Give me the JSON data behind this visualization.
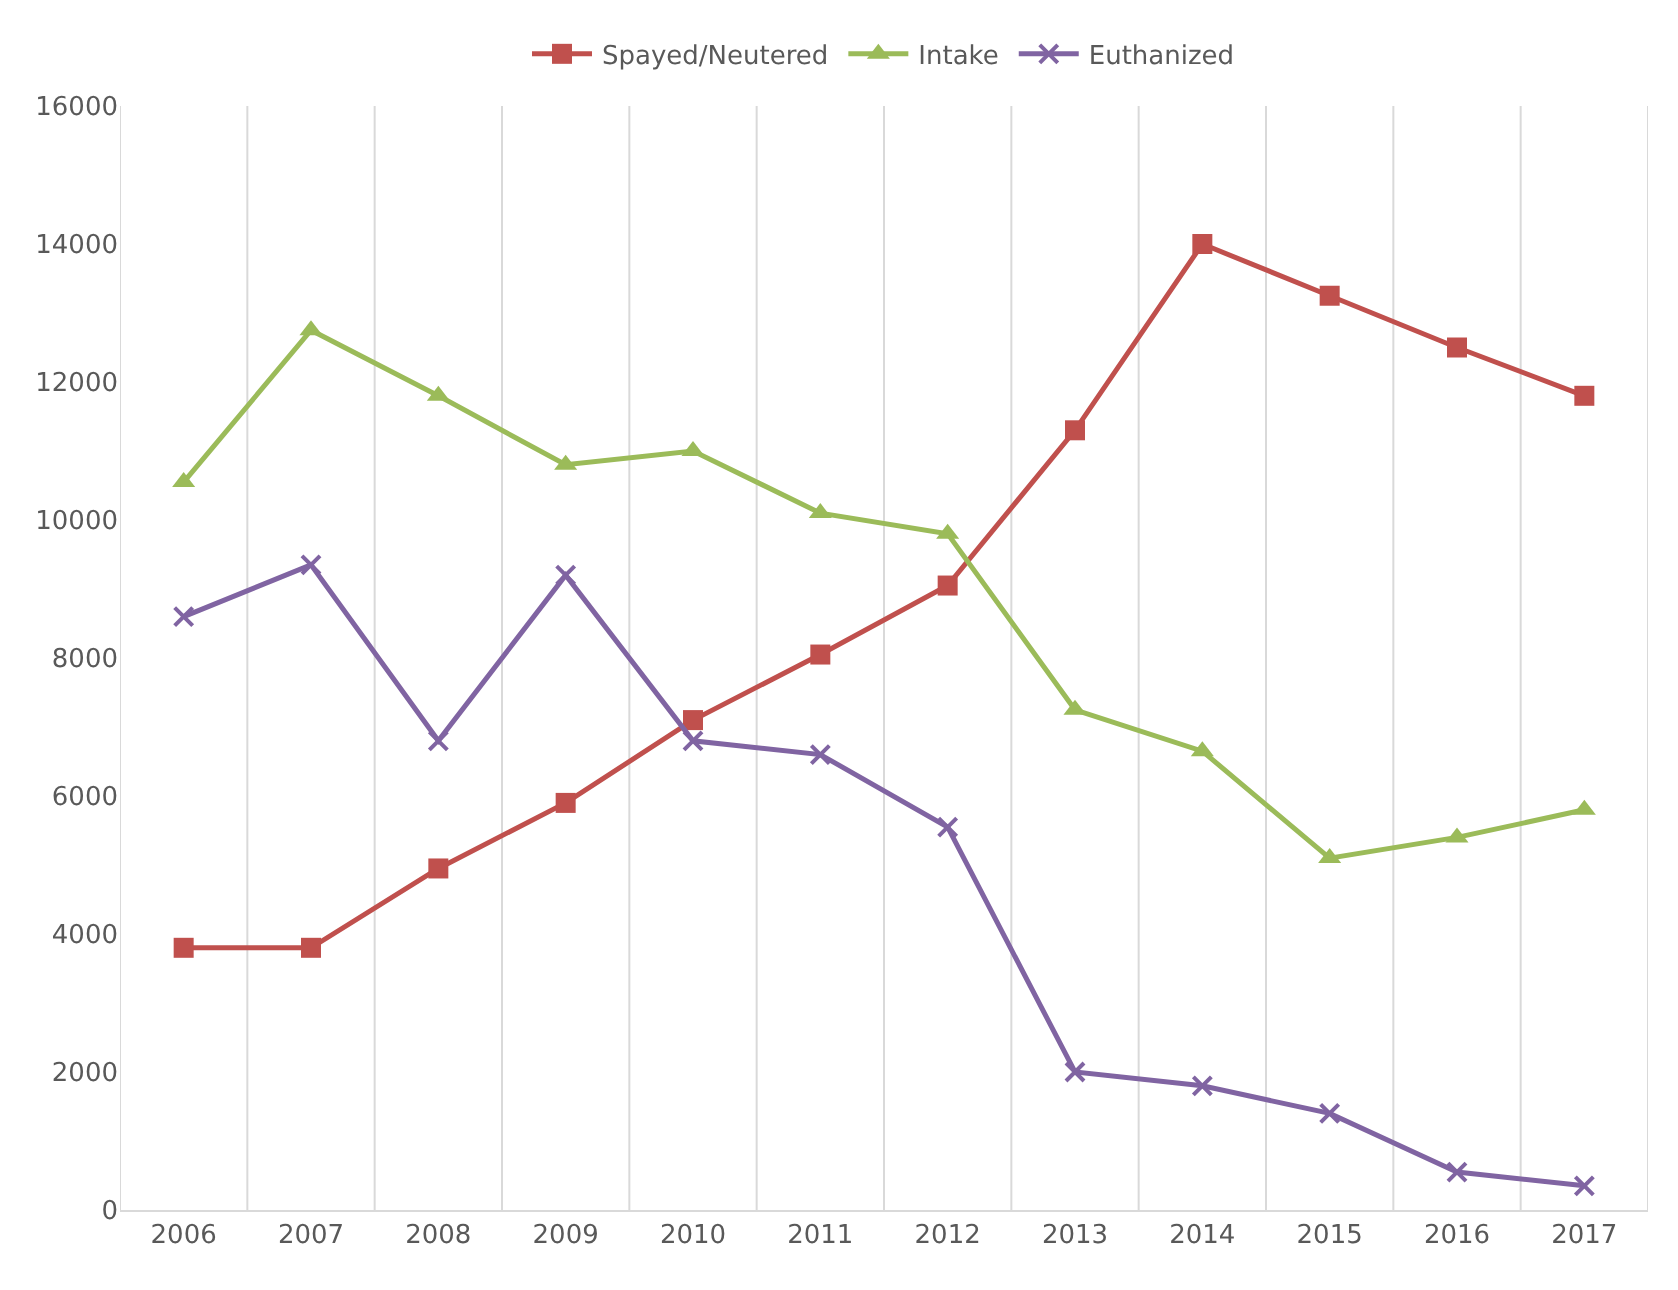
{
  "chart_data": {
    "type": "line",
    "categories": [
      "2006",
      "2007",
      "2008",
      "2009",
      "2010",
      "2011",
      "2012",
      "2013",
      "2014",
      "2015",
      "2016",
      "2017"
    ],
    "series": [
      {
        "name": "Spayed/Neutered",
        "color": "#c0504d",
        "marker": "square",
        "values": [
          3800,
          3800,
          4950,
          5900,
          7100,
          8050,
          9050,
          11300,
          14000,
          13250,
          12500,
          11800
        ]
      },
      {
        "name": "Intake",
        "color": "#9bbb59",
        "marker": "triangle",
        "values": [
          10550,
          12750,
          11800,
          10800,
          11000,
          10100,
          9800,
          7250,
          6650,
          5100,
          5400,
          5800
        ]
      },
      {
        "name": "Euthanized",
        "color": "#8064a2",
        "marker": "cross",
        "values": [
          8600,
          9350,
          6800,
          9200,
          6800,
          6600,
          5550,
          2000,
          1800,
          1400,
          550,
          350
        ]
      }
    ],
    "ylim": [
      0,
      16000
    ],
    "yticks": [
      0,
      2000,
      4000,
      6000,
      8000,
      10000,
      12000,
      14000,
      16000
    ],
    "grid": "x",
    "legend": "top",
    "line_style": "solid"
  }
}
